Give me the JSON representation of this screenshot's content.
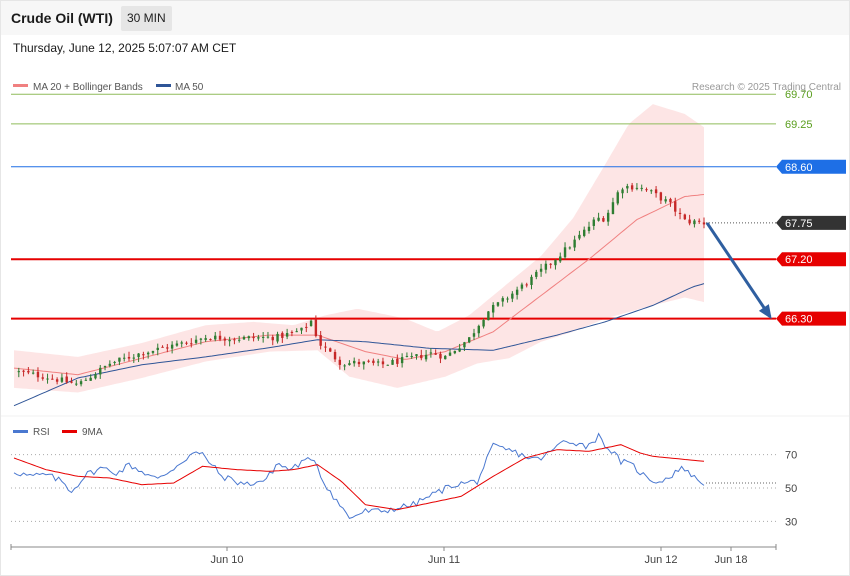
{
  "header": {
    "title": "Crude Oil (WTI)",
    "timeframe": "30 MIN",
    "datetime": "Thursday, June 12, 2025 5:07:07 AM CET"
  },
  "legend": {
    "ma20": "MA 20 + Bollinger Bands",
    "ma50": "MA 50",
    "copyright": "Research © 2025 Trading Central",
    "rsi": "RSI",
    "rsi_ma": "9MA"
  },
  "colors": {
    "candle_up": "#2e7d32",
    "candle_down": "#c62828",
    "ma20": "#f08080",
    "ma50": "#2f5597",
    "band_fill": "#fde0e0",
    "resistance_green": "#8fbc5a",
    "blue_level": "#1e6fe6",
    "red_level": "#e60000",
    "current_price": "#333333",
    "rsi_line": "#4a78d0",
    "rsi_ma_line": "#e60000",
    "arrow": "#2f5fa0"
  },
  "chart_data": [
    {
      "type": "candlestick",
      "title": "Crude Oil (WTI)",
      "timeframe": "30 MIN",
      "ylim": [
        64.9,
        69.9
      ],
      "x_ticks": [
        "Jun 10",
        "Jun 11",
        "Jun 12",
        "Jun 18"
      ],
      "levels": [
        {
          "value": 69.7,
          "label": "69.70",
          "role": "resistance",
          "style": "thin-green"
        },
        {
          "value": 69.25,
          "label": "69.25",
          "role": "resistance",
          "style": "thin-green"
        },
        {
          "value": 68.6,
          "label": "68.60",
          "role": "resistance",
          "style": "blue-badge"
        },
        {
          "value": 67.75,
          "label": "67.75",
          "role": "last-price",
          "style": "dark-badge"
        },
        {
          "value": 67.2,
          "label": "67.20",
          "role": "support",
          "style": "red-badge"
        },
        {
          "value": 66.3,
          "label": "66.30",
          "role": "target",
          "style": "red-badge"
        }
      ],
      "projection": {
        "from": 67.75,
        "to": 66.3,
        "direction": "down"
      },
      "series_anchors": {
        "price_close": [
          [
            0,
            65.5
          ],
          [
            20,
            65.42
          ],
          [
            40,
            65.3
          ],
          [
            60,
            65.62
          ],
          [
            80,
            65.78
          ],
          [
            110,
            65.95
          ],
          [
            120,
            66.02
          ],
          [
            140,
            66.0
          ],
          [
            165,
            66.02
          ],
          [
            180,
            66.12
          ],
          [
            187,
            66.29
          ],
          [
            190,
            65.95
          ],
          [
            205,
            65.62
          ],
          [
            215,
            65.63
          ],
          [
            230,
            65.6
          ],
          [
            245,
            65.68
          ],
          [
            262,
            65.78
          ],
          [
            270,
            65.72
          ],
          [
            285,
            66.0
          ],
          [
            296,
            66.4
          ],
          [
            305,
            66.55
          ],
          [
            325,
            66.92
          ],
          [
            340,
            67.23
          ],
          [
            350,
            67.45
          ],
          [
            365,
            67.82
          ],
          [
            370,
            67.82
          ],
          [
            380,
            68.3
          ],
          [
            390,
            68.3
          ],
          [
            400,
            68.2
          ],
          [
            410,
            68.05
          ],
          [
            420,
            67.78
          ],
          [
            432,
            67.75
          ]
        ],
        "ma20": [
          [
            0,
            65.55
          ],
          [
            40,
            65.45
          ],
          [
            80,
            65.7
          ],
          [
            120,
            65.95
          ],
          [
            160,
            66.05
          ],
          [
            190,
            66.05
          ],
          [
            220,
            65.8
          ],
          [
            245,
            65.68
          ],
          [
            270,
            65.8
          ],
          [
            300,
            66.1
          ],
          [
            330,
            66.65
          ],
          [
            360,
            67.2
          ],
          [
            390,
            67.8
          ],
          [
            420,
            68.15
          ],
          [
            432,
            68.18
          ]
        ],
        "ma50": [
          [
            0,
            64.98
          ],
          [
            40,
            65.4
          ],
          [
            80,
            65.6
          ],
          [
            120,
            65.72
          ],
          [
            160,
            65.86
          ],
          [
            190,
            65.98
          ],
          [
            220,
            65.95
          ],
          [
            260,
            65.85
          ],
          [
            300,
            65.82
          ],
          [
            340,
            66.05
          ],
          [
            370,
            66.25
          ],
          [
            400,
            66.5
          ],
          [
            425,
            66.78
          ],
          [
            432,
            66.83
          ]
        ],
        "bb_upper": [
          [
            0,
            65.82
          ],
          [
            40,
            65.72
          ],
          [
            80,
            65.93
          ],
          [
            120,
            66.2
          ],
          [
            150,
            66.25
          ],
          [
            175,
            66.2
          ],
          [
            195,
            66.35
          ],
          [
            215,
            66.45
          ],
          [
            245,
            66.3
          ],
          [
            265,
            66.1
          ],
          [
            285,
            66.35
          ],
          [
            305,
            66.75
          ],
          [
            330,
            67.25
          ],
          [
            350,
            67.82
          ],
          [
            368,
            68.55
          ],
          [
            385,
            69.25
          ],
          [
            400,
            69.55
          ],
          [
            420,
            69.4
          ],
          [
            432,
            69.2
          ]
        ],
        "bb_lower": [
          [
            0,
            65.25
          ],
          [
            40,
            65.18
          ],
          [
            80,
            65.4
          ],
          [
            120,
            65.65
          ],
          [
            160,
            65.8
          ],
          [
            190,
            65.82
          ],
          [
            210,
            65.42
          ],
          [
            240,
            65.25
          ],
          [
            270,
            65.42
          ],
          [
            290,
            65.62
          ],
          [
            310,
            65.7
          ],
          [
            330,
            65.95
          ],
          [
            350,
            66.1
          ],
          [
            370,
            66.3
          ],
          [
            400,
            66.5
          ],
          [
            420,
            66.62
          ],
          [
            432,
            66.55
          ]
        ]
      }
    },
    {
      "type": "line",
      "title": "RSI",
      "ylim": [
        20,
        80
      ],
      "y_ticks": [
        30,
        50,
        70
      ],
      "series": [
        {
          "name": "RSI",
          "anchors": [
            [
              0,
              60
            ],
            [
              10,
              57
            ],
            [
              20,
              58
            ],
            [
              30,
              54
            ],
            [
              36,
              48
            ],
            [
              45,
              58
            ],
            [
              55,
              62
            ],
            [
              65,
              59
            ],
            [
              72,
              64
            ],
            [
              80,
              60
            ],
            [
              90,
              55
            ],
            [
              100,
              62
            ],
            [
              112,
              71
            ],
            [
              118,
              70
            ],
            [
              122,
              66
            ],
            [
              130,
              57
            ],
            [
              145,
              52
            ],
            [
              158,
              55
            ],
            [
              165,
              65
            ],
            [
              172,
              61
            ],
            [
              180,
              65
            ],
            [
              188,
              68
            ],
            [
              193,
              55
            ],
            [
              200,
              45
            ],
            [
              210,
              32
            ],
            [
              220,
              36
            ],
            [
              230,
              36
            ],
            [
              240,
              38
            ],
            [
              250,
              40
            ],
            [
              262,
              46
            ],
            [
              275,
              52
            ],
            [
              290,
              54
            ],
            [
              300,
              75
            ],
            [
              312,
              72
            ],
            [
              320,
              69
            ],
            [
              328,
              67
            ],
            [
              335,
              71
            ],
            [
              344,
              78
            ],
            [
              350,
              78
            ],
            [
              358,
              75
            ],
            [
              366,
              81
            ],
            [
              372,
              74
            ],
            [
              380,
              66
            ],
            [
              388,
              63
            ],
            [
              396,
              56
            ],
            [
              402,
              54
            ],
            [
              410,
              56
            ],
            [
              414,
              60
            ],
            [
              420,
              62
            ],
            [
              426,
              56
            ],
            [
              432,
              53
            ]
          ]
        },
        {
          "name": "9MA",
          "anchors": [
            [
              0,
              68
            ],
            [
              20,
              61
            ],
            [
              40,
              57
            ],
            [
              60,
              56
            ],
            [
              80,
              52
            ],
            [
              100,
              53
            ],
            [
              118,
              63
            ],
            [
              140,
              61
            ],
            [
              160,
              60
            ],
            [
              175,
              61
            ],
            [
              190,
              64
            ],
            [
              205,
              54
            ],
            [
              220,
              40
            ],
            [
              240,
              37
            ],
            [
              260,
              41
            ],
            [
              280,
              45
            ],
            [
              300,
              57
            ],
            [
              320,
              68
            ],
            [
              340,
              73
            ],
            [
              360,
              72
            ],
            [
              380,
              76
            ],
            [
              392,
              71
            ],
            [
              400,
              69
            ],
            [
              432,
              66
            ]
          ]
        }
      ]
    }
  ]
}
